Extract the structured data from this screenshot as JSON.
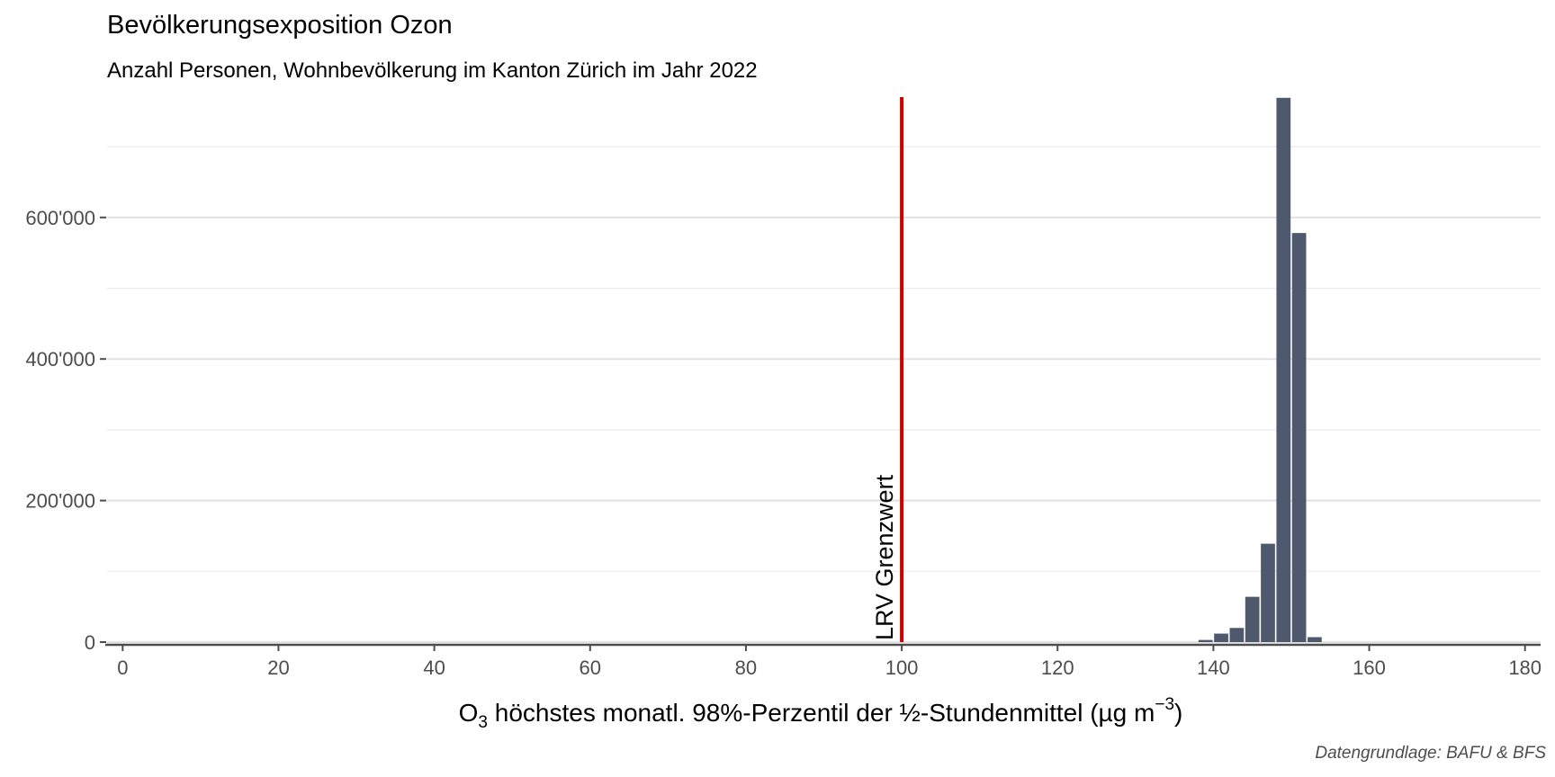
{
  "chart_data": {
    "type": "bar",
    "title": "Bevölkerungsexposition Ozon",
    "subtitle": "Anzahl Personen, Wohnbevölkerung im Kanton Zürich im Jahr 2022",
    "xlabel": {
      "prefix": "O",
      "subscript": "3",
      "main": " höchstes monatl. 98%-Perzentil der ½-Stundenmittel (µg m",
      "superscript": "−3",
      "suffix": ")"
    },
    "ylabel": "",
    "caption": "Datengrundlage: BAFU & BFS",
    "xlim": [
      -2,
      182
    ],
    "ylim": [
      0,
      770000
    ],
    "bin_width": 2,
    "x_ticks": [
      0,
      20,
      40,
      60,
      80,
      100,
      120,
      140,
      160,
      180
    ],
    "x_tick_labels": [
      "0",
      "20",
      "40",
      "60",
      "80",
      "100",
      "120",
      "140",
      "160",
      "180"
    ],
    "y_ticks": [
      0,
      200000,
      400000,
      600000
    ],
    "y_tick_labels": [
      "0",
      "200'000",
      "400'000",
      "600'000"
    ],
    "y_minor_ticks": [
      100000,
      300000,
      500000,
      700000
    ],
    "grid": true,
    "x": [
      139,
      141,
      143,
      145,
      147,
      149,
      151,
      153
    ],
    "values": [
      3000,
      12000,
      20000,
      64000,
      139000,
      769000,
      578000,
      7000
    ],
    "bar_color": "#4f596d",
    "reference_line": {
      "x": 100,
      "label": "LRV Grenzwert",
      "color": "#cc0000"
    }
  }
}
